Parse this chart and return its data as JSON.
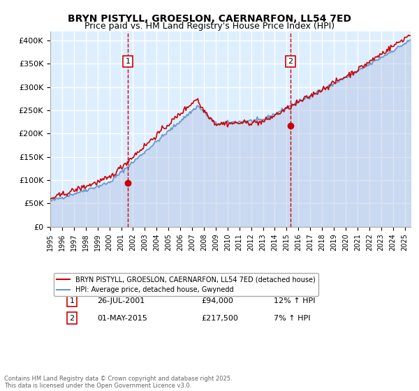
{
  "title1": "BRYN PISTYLL, GROESLON, CAERNARFON, LL54 7ED",
  "title2": "Price paid vs. HM Land Registry's House Price Index (HPI)",
  "ylabel_ticks": [
    "£0",
    "£50K",
    "£100K",
    "£150K",
    "£200K",
    "£250K",
    "£300K",
    "£350K",
    "£400K"
  ],
  "ytick_vals": [
    0,
    50000,
    100000,
    150000,
    200000,
    250000,
    300000,
    350000,
    400000
  ],
  "ylim": [
    0,
    420000
  ],
  "xlim_start": 1995.0,
  "xlim_end": 2025.5,
  "xticks": [
    1995,
    1996,
    1997,
    1998,
    1999,
    2000,
    2001,
    2002,
    2003,
    2004,
    2005,
    2006,
    2007,
    2008,
    2009,
    2010,
    2011,
    2012,
    2013,
    2014,
    2015,
    2016,
    2017,
    2018,
    2019,
    2020,
    2021,
    2022,
    2023,
    2024,
    2025
  ],
  "line1_color": "#cc0000",
  "line2_color": "#6699cc",
  "line2_fill_color": "#aabbdd",
  "bg_color": "#ddeeff",
  "grid_color": "#ffffff",
  "marker1_x": 2001.57,
  "marker1_y": 94000,
  "marker2_x": 2015.33,
  "marker2_y": 217500,
  "legend_line1": "BRYN PISTYLL, GROESLON, CAERNARFON, LL54 7ED (detached house)",
  "legend_line2": "HPI: Average price, detached house, Gwynedd",
  "annotation1_date": "26-JUL-2001",
  "annotation1_price": "£94,000",
  "annotation1_hpi": "12% ↑ HPI",
  "annotation2_date": "01-MAY-2015",
  "annotation2_price": "£217,500",
  "annotation2_hpi": "7% ↑ HPI",
  "footer": "Contains HM Land Registry data © Crown copyright and database right 2025.\nThis data is licensed under the Open Government Licence v3.0.",
  "title_fontsize": 10,
  "subtitle_fontsize": 9
}
